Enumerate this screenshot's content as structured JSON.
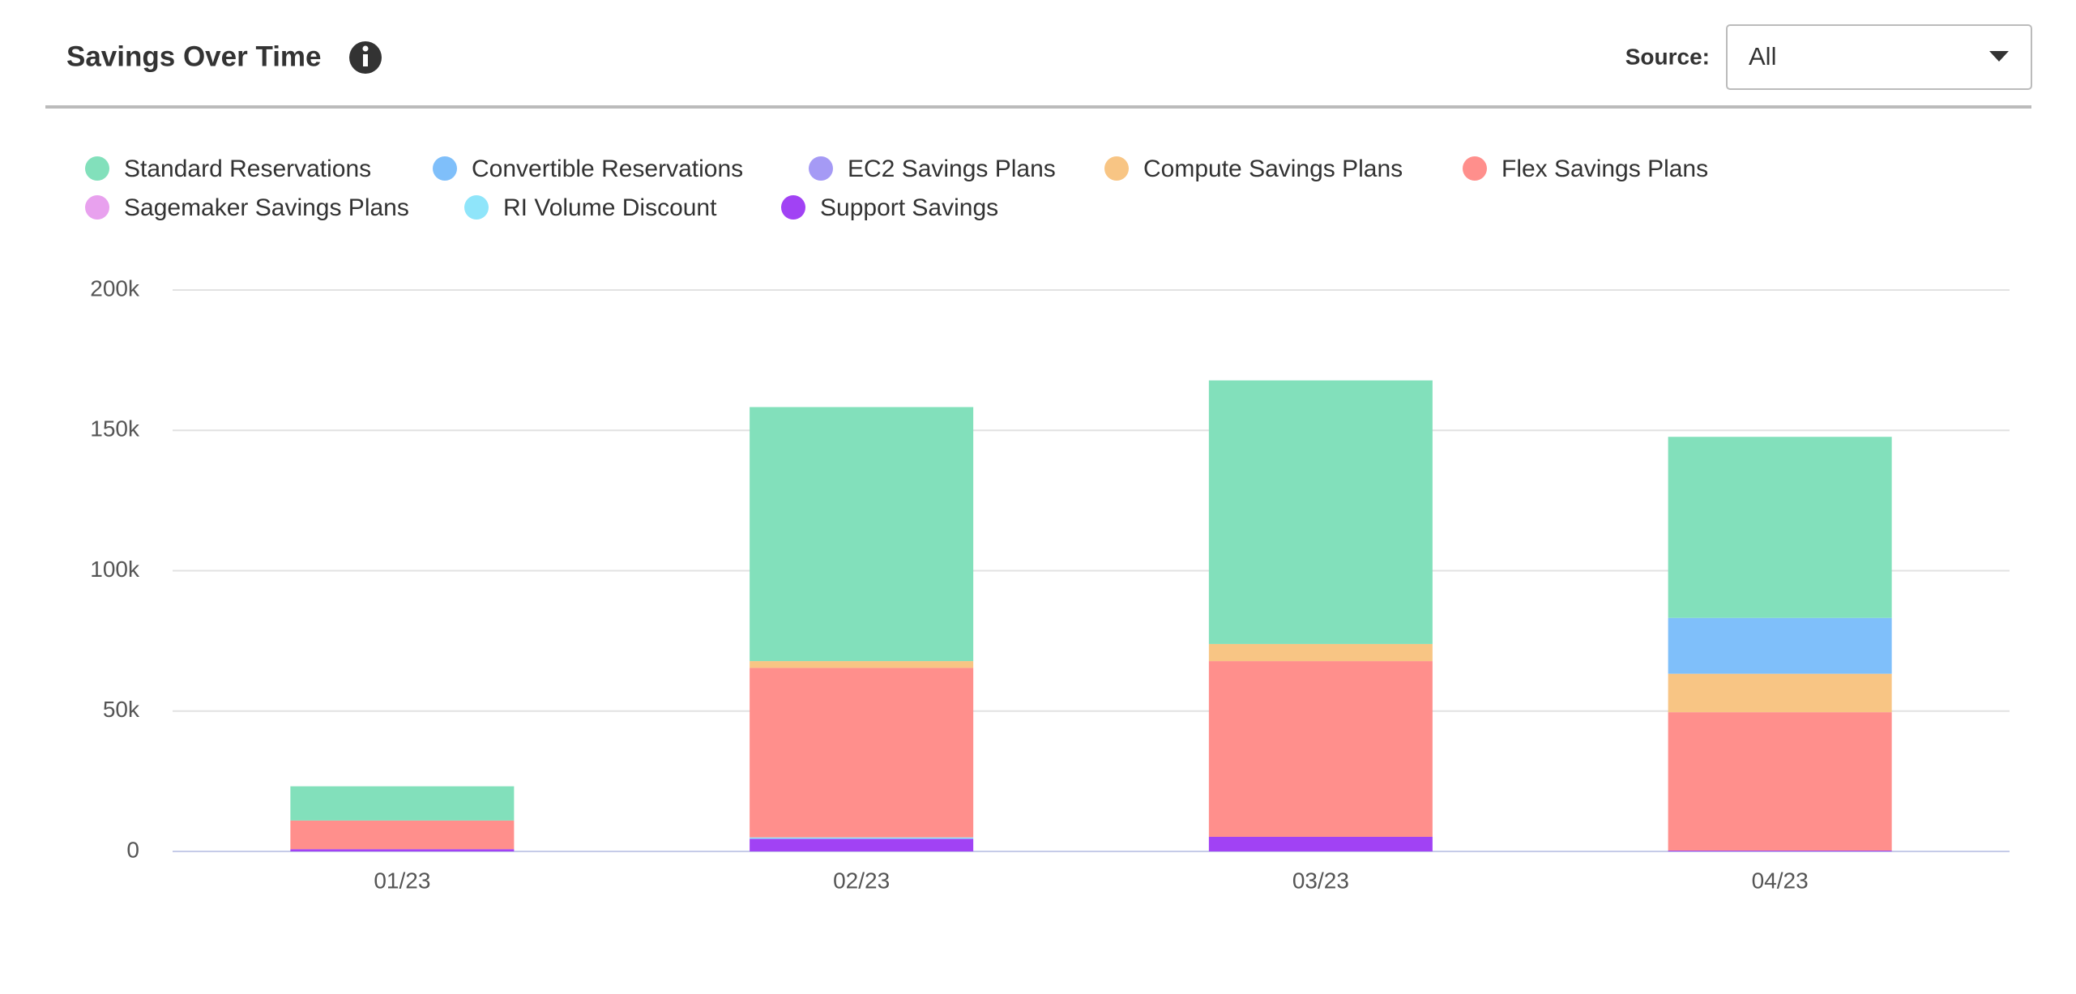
{
  "controls": {
    "source_label": "Source:",
    "source_value": "All"
  },
  "chart_data": {
    "type": "stacked_bar",
    "title": "Savings Over Time",
    "categories": [
      "01/23",
      "02/23",
      "03/23",
      "04/23"
    ],
    "series": [
      {
        "name": "Standard Reservations",
        "color": "#82e0bb",
        "values": [
          12200,
          90500,
          93900,
          64500
        ]
      },
      {
        "name": "Convertible Reservations",
        "color": "#7fbffa",
        "values": [
          0,
          0,
          0,
          19900
        ]
      },
      {
        "name": "EC2 Savings Plans",
        "color": "#a59af5",
        "values": [
          0,
          0,
          0,
          0
        ]
      },
      {
        "name": "Compute Savings Plans",
        "color": "#f8c584",
        "values": [
          0,
          2400,
          6100,
          13700
        ]
      },
      {
        "name": "Flex Savings Plans",
        "color": "#ff8f8c",
        "values": [
          10200,
          60400,
          62600,
          49300
        ]
      },
      {
        "name": "Sagemaker Savings Plans",
        "color": "#e8a1ee",
        "values": [
          0,
          0,
          0,
          0
        ]
      },
      {
        "name": "RI Volume Discount",
        "color": "#8fe5fa",
        "values": [
          0,
          500,
          0,
          0
        ]
      },
      {
        "name": "Support Savings",
        "color": "#a142f4",
        "values": [
          800,
          4500,
          5200,
          300
        ]
      }
    ],
    "ylim": [
      0,
      200000
    ],
    "yticks": [
      0,
      {
        "value": 50000,
        "label": "50k"
      },
      {
        "value": 100000,
        "label": "100k"
      },
      {
        "value": 150000,
        "label": "150k"
      },
      {
        "value": 200000,
        "label": "200k"
      }
    ],
    "grid": true
  }
}
